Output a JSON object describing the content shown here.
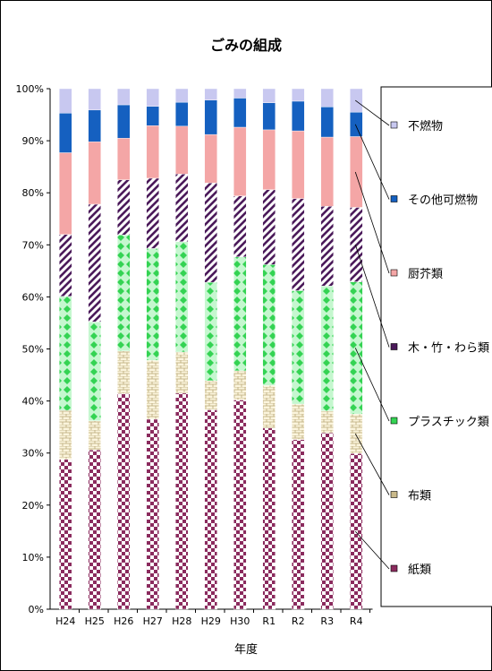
{
  "chart_data": {
    "type": "bar",
    "stacked": true,
    "title": "ごみの組成",
    "xlabel": "年度",
    "ylabel": "",
    "categories": [
      "H24",
      "H25",
      "H26",
      "H27",
      "H28",
      "H29",
      "H30",
      "R1",
      "R2",
      "R3",
      "R4"
    ],
    "y_ticks": [
      "0%",
      "10%",
      "20%",
      "30%",
      "40%",
      "50%",
      "60%",
      "70%",
      "80%",
      "90%",
      "100%"
    ],
    "ylim": [
      0,
      100
    ],
    "legend_position": "right",
    "series": [
      {
        "name": "紙類",
        "color": "#8b2b5e",
        "pattern": "checker",
        "values": [
          28.8,
          30.6,
          41.4,
          36.5,
          41.5,
          38.3,
          40.2,
          34.8,
          32.6,
          33.9,
          29.9
        ]
      },
      {
        "name": "布類",
        "color": "#c9b98a",
        "pattern": "brick",
        "values": [
          9.4,
          5.6,
          8.2,
          11.3,
          7.9,
          5.6,
          5.6,
          8.2,
          6.8,
          4.2,
          7.6
        ]
      },
      {
        "name": "プラスチック類",
        "color": "#34d353",
        "pattern": "diamond",
        "values": [
          21.9,
          19.0,
          22.3,
          21.5,
          21.2,
          18.9,
          21.9,
          23.2,
          21.8,
          24.0,
          25.4
        ]
      },
      {
        "name": "木・竹・わら類",
        "color": "#4b1a5a",
        "pattern": "diagonal",
        "values": [
          11.9,
          22.6,
          10.6,
          13.5,
          13.0,
          19.1,
          11.7,
          14.4,
          17.7,
          15.3,
          14.3
        ]
      },
      {
        "name": "厨芥類",
        "color": "#f4a6a6",
        "pattern": "solid-pink",
        "values": [
          15.7,
          12.0,
          8.0,
          10.1,
          9.2,
          9.3,
          13.2,
          11.5,
          13.0,
          13.3,
          13.6
        ]
      },
      {
        "name": "その他可燃物",
        "color": "#1560c0",
        "pattern": "solid",
        "values": [
          7.6,
          6.1,
          6.4,
          3.7,
          4.6,
          6.6,
          5.6,
          5.2,
          5.7,
          5.8,
          4.7
        ]
      },
      {
        "name": "不燃物",
        "color": "#c8c8f0",
        "pattern": "solid-lavender",
        "values": [
          4.7,
          4.1,
          3.1,
          3.4,
          2.6,
          2.2,
          1.8,
          2.7,
          2.4,
          3.5,
          4.5
        ]
      }
    ]
  }
}
